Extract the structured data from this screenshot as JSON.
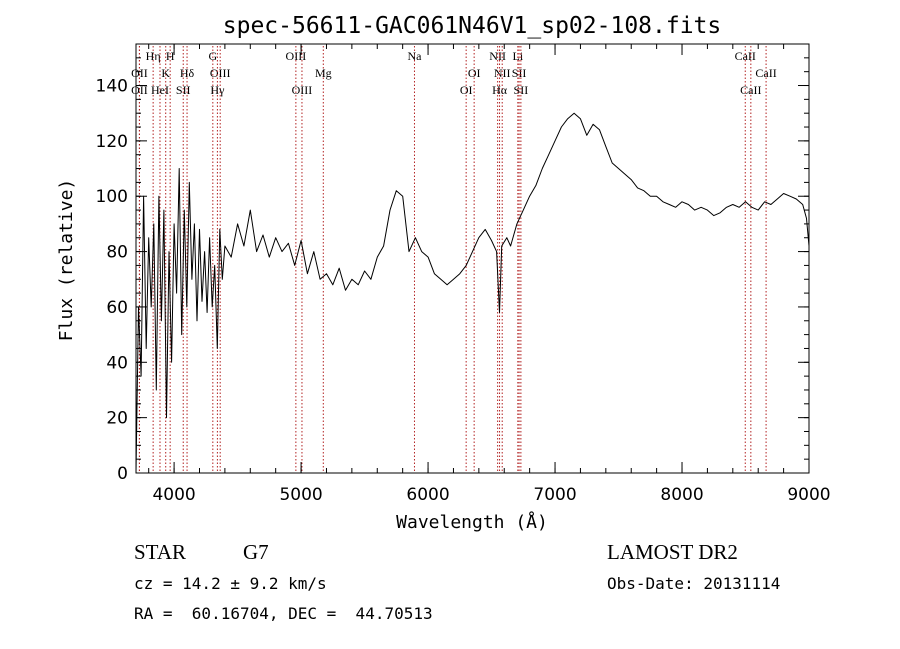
{
  "chart_data": {
    "type": "line",
    "title": "spec-56611-GAC061N46V1_sp02-108.fits",
    "xlabel": "Wavelength (Å)",
    "ylabel": "Flux (relative)",
    "xlim": [
      3700,
      9000
    ],
    "ylim": [
      0,
      155
    ],
    "grid": false,
    "legend": "none",
    "x_ticks": [
      4000,
      5000,
      6000,
      7000,
      8000,
      9000
    ],
    "x_tick_labels": [
      "4000",
      "5000",
      "6000",
      "7000",
      "8000",
      "9000"
    ],
    "y_ticks": [
      0,
      20,
      40,
      60,
      80,
      100,
      120,
      140
    ],
    "y_tick_labels": [
      "0",
      "20",
      "40",
      "60",
      "80",
      "100",
      "120",
      "140"
    ],
    "x_minor_step": 200,
    "y_minor_step": 5,
    "series": [
      {
        "color": "#000000",
        "x": [
          3700,
          3720,
          3740,
          3760,
          3780,
          3800,
          3820,
          3840,
          3860,
          3880,
          3900,
          3920,
          3940,
          3960,
          3980,
          4000,
          4020,
          4040,
          4060,
          4080,
          4100,
          4120,
          4140,
          4160,
          4180,
          4200,
          4220,
          4240,
          4260,
          4280,
          4300,
          4320,
          4340,
          4360,
          4380,
          4400,
          4450,
          4500,
          4550,
          4600,
          4650,
          4700,
          4750,
          4800,
          4850,
          4900,
          4950,
          5000,
          5050,
          5100,
          5150,
          5200,
          5250,
          5300,
          5350,
          5400,
          5450,
          5500,
          5550,
          5600,
          5650,
          5700,
          5750,
          5800,
          5850,
          5900,
          5950,
          6000,
          6050,
          6100,
          6150,
          6200,
          6250,
          6300,
          6350,
          6400,
          6450,
          6500,
          6540,
          6563,
          6580,
          6620,
          6650,
          6700,
          6750,
          6800,
          6850,
          6900,
          6950,
          7000,
          7050,
          7100,
          7150,
          7200,
          7250,
          7300,
          7350,
          7400,
          7450,
          7500,
          7550,
          7600,
          7650,
          7700,
          7750,
          7800,
          7850,
          7900,
          7950,
          8000,
          8050,
          8100,
          8150,
          8200,
          8250,
          8300,
          8350,
          8400,
          8450,
          8500,
          8550,
          8600,
          8650,
          8700,
          8750,
          8800,
          8850,
          8900,
          8950,
          8980,
          9000
        ],
        "y": [
          0,
          60,
          35,
          100,
          45,
          85,
          60,
          90,
          30,
          100,
          55,
          95,
          20,
          80,
          40,
          90,
          65,
          110,
          50,
          95,
          60,
          105,
          70,
          90,
          55,
          88,
          62,
          80,
          58,
          85,
          60,
          75,
          45,
          88,
          70,
          82,
          78,
          90,
          82,
          95,
          80,
          86,
          78,
          85,
          80,
          83,
          75,
          84,
          72,
          80,
          70,
          72,
          68,
          74,
          66,
          70,
          68,
          73,
          70,
          78,
          82,
          95,
          102,
          100,
          80,
          85,
          80,
          78,
          72,
          70,
          68,
          70,
          72,
          75,
          80,
          85,
          88,
          84,
          80,
          58,
          82,
          85,
          82,
          90,
          95,
          100,
          104,
          110,
          115,
          120,
          125,
          128,
          130,
          128,
          122,
          126,
          124,
          118,
          112,
          110,
          108,
          106,
          103,
          102,
          100,
          100,
          98,
          97,
          96,
          98,
          97,
          95,
          96,
          95,
          93,
          94,
          96,
          97,
          96,
          98,
          96,
          95,
          98,
          97,
          99,
          101,
          100,
          99,
          97,
          92,
          82
        ]
      }
    ],
    "line_markers": [
      {
        "label": "OII",
        "x": 3727,
        "row": 1
      },
      {
        "label": "OII",
        "x": 3727,
        "row": 2
      },
      {
        "label": "Hη",
        "x": 3835,
        "row": 0
      },
      {
        "label": "HeI",
        "x": 3889,
        "row": 2
      },
      {
        "label": "K",
        "x": 3934,
        "row": 1
      },
      {
        "label": "H",
        "x": 3969,
        "row": 0
      },
      {
        "label": "SII",
        "x": 4072,
        "row": 2
      },
      {
        "label": "Hδ",
        "x": 4102,
        "row": 1
      },
      {
        "label": "G",
        "x": 4305,
        "row": 0
      },
      {
        "label": "OIII",
        "x": 4363,
        "row": 1
      },
      {
        "label": "Hγ",
        "x": 4341,
        "row": 2
      },
      {
        "label": "OIII",
        "x": 4959,
        "row": 0
      },
      {
        "label": "OIII",
        "x": 5007,
        "row": 2
      },
      {
        "label": "Mg",
        "x": 5175,
        "row": 1
      },
      {
        "label": "Na",
        "x": 5893,
        "row": 0
      },
      {
        "label": "OI",
        "x": 6300,
        "row": 2
      },
      {
        "label": "OI",
        "x": 6363,
        "row": 1
      },
      {
        "label": "NII",
        "x": 6548,
        "row": 0
      },
      {
        "label": "NII",
        "x": 6584,
        "row": 1
      },
      {
        "label": "Hα",
        "x": 6563,
        "row": 2
      },
      {
        "label": "Li",
        "x": 6707,
        "row": 0
      },
      {
        "label": "SII",
        "x": 6717,
        "row": 1
      },
      {
        "label": "SII",
        "x": 6731,
        "row": 2
      },
      {
        "label": "CaII",
        "x": 8498,
        "row": 0
      },
      {
        "label": "CaII",
        "x": 8542,
        "row": 2
      },
      {
        "label": "CaII",
        "x": 8662,
        "row": 1
      }
    ]
  },
  "info": {
    "class": "STAR",
    "subclass": "G7",
    "survey": "LAMOST DR2",
    "redshift": "cz = 14.2 ± 9.2 km/s",
    "obs_date": "Obs-Date: 20131114",
    "coords": "RA =  60.16704, DEC =  44.70513"
  },
  "colors": {
    "line": "#000000",
    "marker": "#b22222"
  }
}
